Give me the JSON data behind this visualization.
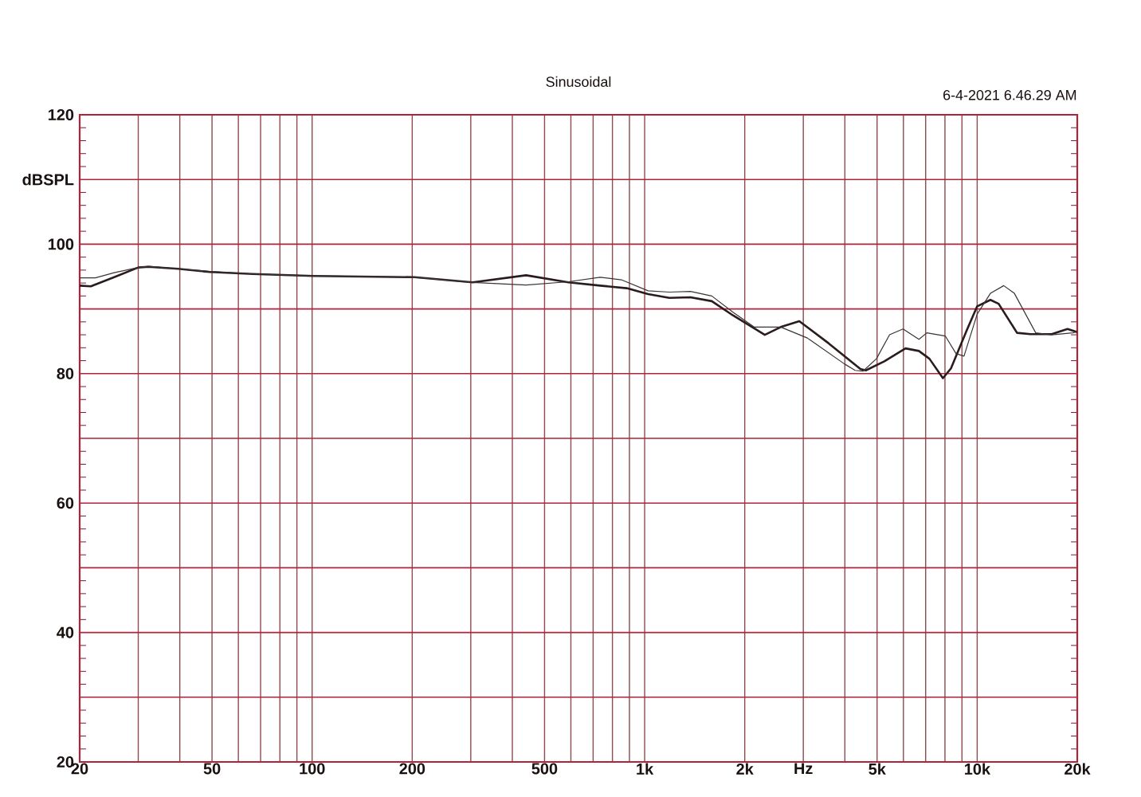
{
  "chart_data": {
    "type": "line",
    "title": "Sinusoidal",
    "annotations": [
      "6-4-2021 6.46.29 AM"
    ],
    "log": "x",
    "grid": true,
    "xlim": [
      20,
      20000
    ],
    "ylim": [
      20,
      120
    ],
    "xticks": [
      20,
      {
        "value": 30,
        "label": null
      },
      {
        "value": 40,
        "label": null
      },
      50,
      {
        "value": 60,
        "label": null
      },
      {
        "value": 70,
        "label": null
      },
      {
        "value": 80,
        "label": null
      },
      {
        "value": 90,
        "label": null
      },
      100,
      200,
      {
        "value": 300,
        "label": null
      },
      {
        "value": 400,
        "label": null
      },
      500,
      {
        "value": 600,
        "label": null
      },
      {
        "value": 700,
        "label": null
      },
      {
        "value": 800,
        "label": null
      },
      {
        "value": 900,
        "label": null
      },
      {
        "value": 1000,
        "label": "1k"
      },
      {
        "value": 2000,
        "label": "2k"
      },
      {
        "value": 3000,
        "label": "Hz"
      },
      {
        "value": 4000,
        "label": null
      },
      {
        "value": 5000,
        "label": "5k"
      },
      {
        "value": 6000,
        "label": null
      },
      {
        "value": 7000,
        "label": null
      },
      {
        "value": 8000,
        "label": null
      },
      {
        "value": 9000,
        "label": null
      },
      {
        "value": 10000,
        "label": "10k"
      },
      {
        "value": 20000,
        "label": "20k"
      }
    ],
    "yticks": [
      20,
      {
        "value": 30,
        "label": null
      },
      40,
      {
        "value": 50,
        "label": null
      },
      60,
      {
        "value": 70,
        "label": null
      },
      80,
      {
        "value": 90,
        "label": null
      },
      100,
      {
        "value": 110,
        "label": "dBSPL"
      },
      120
    ],
    "series": [
      {
        "color": "#2a1c1c",
        "x": [
          20,
          21.6,
          25.4,
          30,
          32.2,
          39.5,
          49.3,
          66.1,
          101,
          203,
          304,
          440,
          590,
          735,
          883,
          1024,
          1186,
          1373,
          1592,
          1844,
          2134,
          2298,
          2566,
          2918,
          3573,
          4456,
          4623,
          5257,
          6088,
          6680,
          7186,
          7890,
          8340,
          9302,
          10000,
          10960,
          11600,
          13180,
          14460,
          16750,
          18700,
          20000
        ],
        "values": [
          93.6,
          93.5,
          94.9,
          96.4,
          96.5,
          96.2,
          95.7,
          95.4,
          95.1,
          94.9,
          94.1,
          95.2,
          94.1,
          93.6,
          93.2,
          92.3,
          91.7,
          91.8,
          91.2,
          89.0,
          87.0,
          86.0,
          87.2,
          88.1,
          84.7,
          80.7,
          80.5,
          81.9,
          83.9,
          83.5,
          82.3,
          79.3,
          80.8,
          86.7,
          90.4,
          91.4,
          90.8,
          86.3,
          86.1,
          86.1,
          86.9,
          86.4
        ]
      },
      {
        "color": "#3a3434",
        "x": [
          20,
          22.3,
          25.4,
          30,
          32.2,
          39.5,
          49.3,
          66.1,
          101,
          203,
          304,
          440,
          590,
          735,
          851,
          1024,
          1186,
          1373,
          1592,
          1844,
          2134,
          2566,
          3086,
          3990,
          4297,
          4540,
          4978,
          5452,
          5984,
          6680,
          7058,
          8024,
          8637,
          9126,
          10000,
          10960,
          12020,
          12940,
          15000,
          16750,
          19390,
          20000
        ],
        "values": [
          94.8,
          94.8,
          95.6,
          96.4,
          96.6,
          96.2,
          95.8,
          95.4,
          95.1,
          94.9,
          94.1,
          93.7,
          94.2,
          94.9,
          94.5,
          92.8,
          92.6,
          92.7,
          92.0,
          89.5,
          87.2,
          87.2,
          85.5,
          81.5,
          80.5,
          80.4,
          82.3,
          86.0,
          86.9,
          85.3,
          86.3,
          85.8,
          83.1,
          82.7,
          89.2,
          92.4,
          93.6,
          92.4,
          86.3,
          86.0,
          86.3,
          86.5
        ]
      }
    ]
  }
}
